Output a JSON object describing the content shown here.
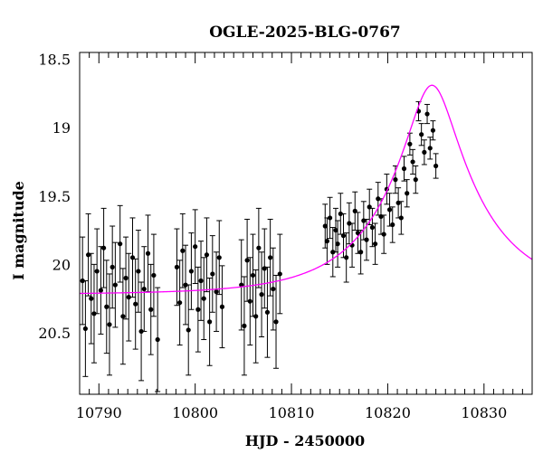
{
  "chart_data": {
    "type": "scatter",
    "title": "OGLE-2025-BLG-0767",
    "xlabel": "HJD - 2450000",
    "ylabel": "I magnitude",
    "xlim": [
      10788,
      10835
    ],
    "ylim": [
      20.95,
      18.45
    ],
    "y_axis_inverted": true,
    "x_ticks": [
      10790,
      10800,
      10810,
      10820,
      10830
    ],
    "x_tick_labels": [
      "10790",
      "10800",
      "10810",
      "10820",
      "10830"
    ],
    "y_ticks": [
      18.5,
      19,
      19.5,
      20,
      20.5
    ],
    "y_tick_labels": [
      "18.5",
      "19",
      "19.5",
      "20",
      "20.5"
    ],
    "grid": false,
    "colors": {
      "points": "#000000",
      "model": "#ff00ff"
    },
    "series": [
      {
        "type": "errorbar-points",
        "x": [
          10788.3,
          10788.6,
          10788.9,
          10789.2,
          10789.5,
          10789.8,
          10790.2,
          10790.5,
          10790.8,
          10791.1,
          10791.4,
          10791.7,
          10792.2,
          10792.5,
          10792.8,
          10793.1,
          10793.5,
          10793.8,
          10794.1,
          10794.4,
          10794.7,
          10795.1,
          10795.4,
          10795.7,
          10796.1,
          10798.1,
          10798.4,
          10798.7,
          10799.0,
          10799.3,
          10799.6,
          10800.0,
          10800.3,
          10800.6,
          10800.9,
          10801.2,
          10801.5,
          10801.8,
          10802.2,
          10802.5,
          10802.8,
          10804.8,
          10805.1,
          10805.4,
          10805.7,
          10806.0,
          10806.3,
          10806.6,
          10806.9,
          10807.2,
          10807.5,
          10807.8,
          10808.1,
          10808.4,
          10808.8,
          10813.5,
          10813.7,
          10814.0,
          10814.3,
          10814.6,
          10814.8,
          10815.1,
          10815.4,
          10815.7,
          10816.0,
          10816.3,
          10816.6,
          10816.9,
          10817.2,
          10817.5,
          10817.8,
          10818.1,
          10818.4,
          10818.7,
          10819.0,
          10819.3,
          10819.6,
          10819.9,
          10820.2,
          10820.5,
          10820.8,
          10821.1,
          10821.4,
          10821.7,
          10822.0,
          10822.3,
          10822.6,
          10822.9,
          10823.2,
          10823.5,
          10823.8,
          10824.1,
          10824.4,
          10824.7,
          10825.0
        ],
        "y": [
          20.12,
          20.47,
          19.93,
          20.25,
          20.36,
          20.05,
          20.19,
          19.88,
          20.31,
          20.44,
          20.02,
          20.15,
          19.85,
          20.38,
          20.1,
          20.24,
          19.95,
          20.29,
          20.05,
          20.49,
          20.18,
          19.92,
          20.33,
          20.08,
          20.55,
          20.02,
          20.28,
          19.9,
          20.15,
          20.48,
          20.05,
          19.87,
          20.33,
          20.12,
          20.25,
          19.93,
          20.42,
          20.07,
          20.2,
          19.95,
          20.31,
          20.15,
          20.45,
          19.97,
          20.27,
          20.08,
          20.38,
          19.88,
          20.22,
          20.03,
          20.35,
          19.95,
          20.18,
          20.42,
          20.07,
          19.72,
          19.83,
          19.66,
          19.91,
          19.75,
          19.85,
          19.63,
          19.79,
          19.95,
          19.7,
          19.86,
          19.61,
          19.77,
          19.91,
          19.68,
          19.82,
          19.58,
          19.73,
          19.85,
          19.52,
          19.65,
          19.78,
          19.45,
          19.6,
          19.71,
          19.38,
          19.55,
          19.66,
          19.3,
          19.48,
          19.12,
          19.25,
          19.38,
          18.88,
          19.05,
          19.18,
          18.9,
          19.15,
          19.02,
          19.28
        ],
        "err": [
          0.32,
          0.35,
          0.3,
          0.33,
          0.36,
          0.31,
          0.32,
          0.29,
          0.34,
          0.37,
          0.3,
          0.31,
          0.28,
          0.35,
          0.3,
          0.32,
          0.29,
          0.33,
          0.3,
          0.36,
          0.31,
          0.28,
          0.33,
          0.3,
          0.38,
          0.28,
          0.31,
          0.27,
          0.29,
          0.33,
          0.28,
          0.27,
          0.31,
          0.29,
          0.3,
          0.27,
          0.32,
          0.28,
          0.29,
          0.27,
          0.3,
          0.33,
          0.36,
          0.3,
          0.32,
          0.3,
          0.34,
          0.29,
          0.31,
          0.29,
          0.33,
          0.28,
          0.3,
          0.34,
          0.29,
          0.16,
          0.17,
          0.15,
          0.18,
          0.16,
          0.17,
          0.15,
          0.16,
          0.18,
          0.15,
          0.16,
          0.14,
          0.15,
          0.16,
          0.14,
          0.15,
          0.13,
          0.14,
          0.15,
          0.12,
          0.13,
          0.14,
          0.11,
          0.12,
          0.13,
          0.1,
          0.11,
          0.12,
          0.09,
          0.1,
          0.08,
          0.09,
          0.1,
          0.07,
          0.08,
          0.09,
          0.07,
          0.08,
          0.07,
          0.09
        ]
      },
      {
        "type": "line",
        "u0": 0.25,
        "t0": 10824.6,
        "tE": 9.5,
        "I_base": 20.22,
        "x_range": [
          10788,
          10835
        ]
      }
    ]
  }
}
